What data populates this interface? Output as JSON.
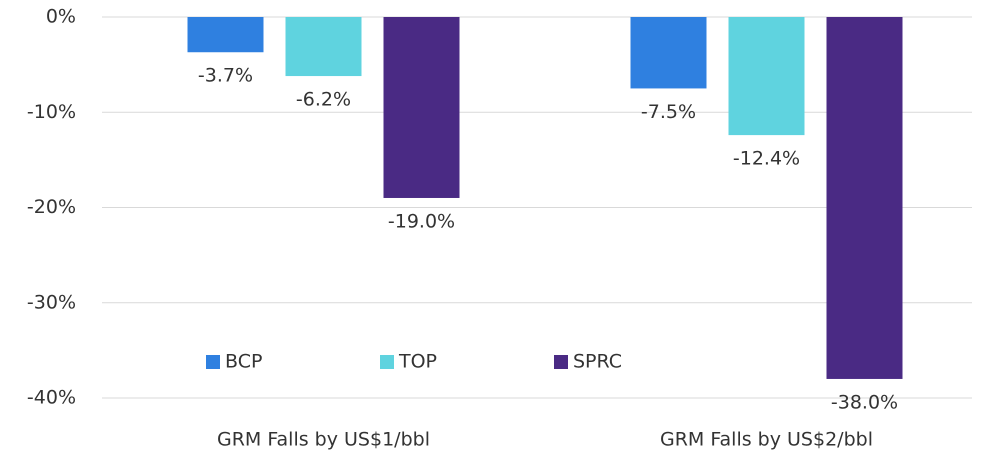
{
  "chart_data": {
    "type": "bar",
    "categories": [
      "GRM Falls by US$1/bbl",
      "GRM Falls by US$2/bbl"
    ],
    "series": [
      {
        "name": "BCP",
        "color": "#2f80e0",
        "values": [
          -3.7,
          -7.5
        ],
        "value_labels": [
          "-3.7%",
          "-7.5%"
        ]
      },
      {
        "name": "TOP",
        "color": "#5fd3df",
        "values": [
          -6.2,
          -12.4
        ],
        "value_labels": [
          "-6.2%",
          "-12.4%"
        ]
      },
      {
        "name": "SPRC",
        "color": "#4a2a84",
        "values": [
          -19.0,
          -38.0
        ],
        "value_labels": [
          "-19.0%",
          "-38.0%"
        ]
      }
    ],
    "ylim": [
      -40,
      0
    ],
    "yticks": [
      {
        "value": 0,
        "label": "0%"
      },
      {
        "value": -10,
        "label": "-10%"
      },
      {
        "value": -20,
        "label": "-20%"
      },
      {
        "value": -30,
        "label": "-30%"
      },
      {
        "value": -40,
        "label": "-40%"
      }
    ],
    "grid": true,
    "legend": "bottom"
  }
}
